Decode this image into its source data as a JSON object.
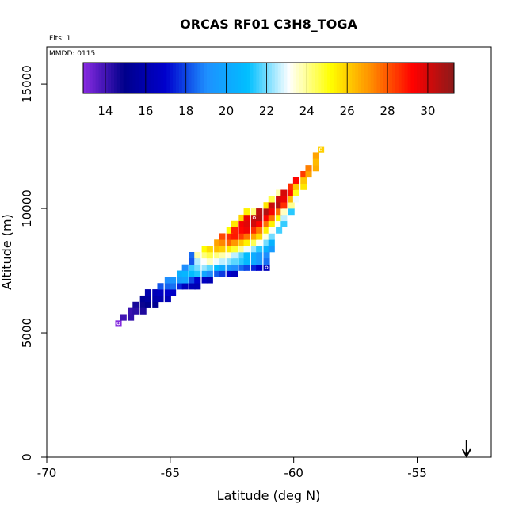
{
  "chart_data": {
    "type": "heatmap",
    "title": "ORCAS RF01 C3H8_TOGA",
    "flights_label": "Flts: 1",
    "date_label": "MMDD: 0115",
    "xlabel": "Latitude (deg N)",
    "ylabel": "Altitude (m)",
    "xlim": [
      -70,
      -52
    ],
    "ylim": [
      0,
      16500
    ],
    "xticks": [
      "-70",
      "-65",
      "-60",
      "-55"
    ],
    "xtick_values": [
      -70,
      -65,
      -60,
      -55
    ],
    "yticks": [
      "0",
      "5000",
      "10000",
      "15000"
    ],
    "ytick_values": [
      0,
      5000,
      10000,
      15000
    ],
    "cell_size": {
      "lat": 0.25,
      "alt": 250
    },
    "colorbar": {
      "range": [
        12.9,
        31.3
      ],
      "ticks": [
        "14",
        "16",
        "18",
        "20",
        "22",
        "24",
        "26",
        "28",
        "30"
      ],
      "tick_values": [
        14,
        16,
        18,
        20,
        22,
        24,
        26,
        28,
        30
      ],
      "colors": [
        "#8a2be2",
        "#00008b",
        "#0000cd",
        "#1e90ff",
        "#00bfff",
        "#ffffff",
        "#ffff00",
        "#ff8c00",
        "#ff0000",
        "#8b1a1a"
      ]
    },
    "arrow_marker": {
      "lat": -53,
      "label": ""
    },
    "cells": [
      [
        -67.1,
        5375,
        13.0
      ],
      [
        -66.9,
        5625,
        14.0
      ],
      [
        -66.6,
        5625,
        14.2
      ],
      [
        -66.6,
        5875,
        14.1
      ],
      [
        -66.4,
        5875,
        14.3
      ],
      [
        -66.1,
        5875,
        14.5
      ],
      [
        -66.4,
        6125,
        14.6
      ],
      [
        -66.1,
        6125,
        14.8
      ],
      [
        -65.9,
        6125,
        15.0
      ],
      [
        -65.6,
        6125,
        15.2
      ],
      [
        -66.1,
        6375,
        15.3
      ],
      [
        -65.9,
        6375,
        15.6
      ],
      [
        -65.6,
        6375,
        15.9
      ],
      [
        -65.4,
        6375,
        16.1
      ],
      [
        -65.1,
        6375,
        16.2
      ],
      [
        -65.9,
        6625,
        16.0
      ],
      [
        -65.6,
        6625,
        16.3
      ],
      [
        -65.4,
        6625,
        16.6
      ],
      [
        -65.1,
        6625,
        16.9
      ],
      [
        -64.9,
        6625,
        16.8
      ],
      [
        -65.4,
        6875,
        18.2
      ],
      [
        -65.1,
        6875,
        18.4
      ],
      [
        -64.9,
        6875,
        18.6
      ],
      [
        -64.6,
        6875,
        17.5
      ],
      [
        -64.4,
        6875,
        16.5
      ],
      [
        -64.1,
        6875,
        16.3
      ],
      [
        -63.9,
        6875,
        16.2
      ],
      [
        -65.1,
        7125,
        19.0
      ],
      [
        -64.9,
        7125,
        19.3
      ],
      [
        -64.6,
        7125,
        19.6
      ],
      [
        -64.4,
        7125,
        19.8
      ],
      [
        -64.1,
        7125,
        18.0
      ],
      [
        -63.9,
        7125,
        17.0
      ],
      [
        -63.6,
        7125,
        16.6
      ],
      [
        -63.4,
        7125,
        16.2
      ],
      [
        -64.6,
        7375,
        20.4
      ],
      [
        -64.4,
        7375,
        20.7
      ],
      [
        -64.1,
        7375,
        21.0
      ],
      [
        -63.9,
        7375,
        21.3
      ],
      [
        -63.6,
        7375,
        20.0
      ],
      [
        -63.4,
        7375,
        19.0
      ],
      [
        -63.1,
        7375,
        18.3
      ],
      [
        -62.9,
        7375,
        17.8
      ],
      [
        -62.6,
        7375,
        17.0
      ],
      [
        -62.4,
        7375,
        16.5
      ],
      [
        -64.4,
        7625,
        19.0
      ],
      [
        -64.1,
        7625,
        21.5
      ],
      [
        -63.9,
        7625,
        22.0
      ],
      [
        -63.6,
        7625,
        22.3
      ],
      [
        -63.4,
        7625,
        21.8
      ],
      [
        -63.1,
        7625,
        21.0
      ],
      [
        -62.9,
        7625,
        20.2
      ],
      [
        -62.6,
        7625,
        19.5
      ],
      [
        -62.4,
        7625,
        19.0
      ],
      [
        -62.1,
        7625,
        18.5
      ],
      [
        -61.9,
        7625,
        18.0
      ],
      [
        -61.6,
        7625,
        17.5
      ],
      [
        -61.4,
        7625,
        16.8
      ],
      [
        -61.1,
        7625,
        16.3
      ],
      [
        -64.1,
        7875,
        18.2
      ],
      [
        -63.9,
        7875,
        22.5
      ],
      [
        -63.6,
        7875,
        23.1
      ],
      [
        -63.4,
        7875,
        23.6
      ],
      [
        -63.1,
        7875,
        23.0
      ],
      [
        -62.9,
        7875,
        22.6
      ],
      [
        -62.6,
        7875,
        22.2
      ],
      [
        -62.4,
        7875,
        21.8
      ],
      [
        -62.1,
        7875,
        21.4
      ],
      [
        -61.9,
        7875,
        20.8
      ],
      [
        -61.6,
        7875,
        20.2
      ],
      [
        -61.4,
        7875,
        19.5
      ],
      [
        -61.1,
        7875,
        18.6
      ],
      [
        -64.1,
        8125,
        18.5
      ],
      [
        -63.9,
        8125,
        23.8
      ],
      [
        -63.6,
        8125,
        24.2
      ],
      [
        -63.4,
        8125,
        24.6
      ],
      [
        -63.1,
        8125,
        24.2
      ],
      [
        -62.9,
        8125,
        23.8
      ],
      [
        -62.6,
        8125,
        23.4
      ],
      [
        -62.4,
        8125,
        22.6
      ],
      [
        -62.1,
        8125,
        21.8
      ],
      [
        -61.9,
        8125,
        21.0
      ],
      [
        -61.6,
        8125,
        20.2
      ],
      [
        -61.4,
        8125,
        19.5
      ],
      [
        -61.1,
        8125,
        19.0
      ],
      [
        -63.6,
        8375,
        25.2
      ],
      [
        -63.4,
        8375,
        25.8
      ],
      [
        -63.1,
        8375,
        26.3
      ],
      [
        -62.9,
        8375,
        26.0
      ],
      [
        -62.6,
        8375,
        25.5
      ],
      [
        -62.4,
        8375,
        24.8
      ],
      [
        -62.1,
        8375,
        24.0
      ],
      [
        -61.9,
        8375,
        23.0
      ],
      [
        -61.6,
        8375,
        22.3
      ],
      [
        -61.4,
        8375,
        21.4
      ],
      [
        -61.1,
        8375,
        20.5
      ],
      [
        -60.9,
        8375,
        19.5
      ],
      [
        -63.1,
        8625,
        26.8
      ],
      [
        -62.9,
        8625,
        27.3
      ],
      [
        -62.6,
        8625,
        27.8
      ],
      [
        -62.4,
        8625,
        27.0
      ],
      [
        -62.1,
        8625,
        26.2
      ],
      [
        -61.9,
        8625,
        25.4
      ],
      [
        -61.6,
        8625,
        24.5
      ],
      [
        -61.4,
        8625,
        23.2
      ],
      [
        -61.1,
        8625,
        22.0
      ],
      [
        -60.9,
        8625,
        20.5
      ],
      [
        -62.9,
        8875,
        28.2
      ],
      [
        -62.6,
        8875,
        28.6
      ],
      [
        -62.4,
        8875,
        28.9
      ],
      [
        -62.1,
        8875,
        28.4
      ],
      [
        -61.9,
        8875,
        27.6
      ],
      [
        -61.6,
        8875,
        26.8
      ],
      [
        -61.4,
        8875,
        25.8
      ],
      [
        -61.1,
        8875,
        23.4
      ],
      [
        -60.9,
        8875,
        22.0
      ],
      [
        -62.6,
        9125,
        25.2
      ],
      [
        -62.4,
        9125,
        28.8
      ],
      [
        -62.1,
        9125,
        29.2
      ],
      [
        -61.9,
        9125,
        29.5
      ],
      [
        -61.6,
        9125,
        28.6
      ],
      [
        -61.4,
        9125,
        27.4
      ],
      [
        -61.1,
        9125,
        25.4
      ],
      [
        -60.9,
        9125,
        23.2
      ],
      [
        -60.6,
        9125,
        21.6
      ],
      [
        -62.4,
        9375,
        25.6
      ],
      [
        -62.1,
        9375,
        29.4
      ],
      [
        -61.9,
        9375,
        29.8
      ],
      [
        -61.6,
        9375,
        30.1
      ],
      [
        -61.4,
        9375,
        29.2
      ],
      [
        -61.1,
        9375,
        27.6
      ],
      [
        -60.9,
        9375,
        25.4
      ],
      [
        -60.6,
        9375,
        23.2
      ],
      [
        -60.4,
        9375,
        21.5
      ],
      [
        -62.1,
        9625,
        25.9
      ],
      [
        -61.9,
        9625,
        29.6
      ],
      [
        -61.6,
        9625,
        30.3
      ],
      [
        -61.4,
        9625,
        30.6
      ],
      [
        -61.1,
        9625,
        29.2
      ],
      [
        -60.9,
        9625,
        27.6
      ],
      [
        -60.6,
        9625,
        25.2
      ],
      [
        -60.4,
        9625,
        22.6
      ],
      [
        -61.9,
        9875,
        25.4
      ],
      [
        -61.6,
        9875,
        24.2
      ],
      [
        -61.4,
        9875,
        30.4
      ],
      [
        -61.1,
        9875,
        30.6
      ],
      [
        -60.9,
        9875,
        29.4
      ],
      [
        -60.6,
        9875,
        27.6
      ],
      [
        -60.4,
        9875,
        23.6
      ],
      [
        -60.1,
        9875,
        21.4
      ],
      [
        -61.1,
        10125,
        25.6
      ],
      [
        -60.9,
        10125,
        30.2
      ],
      [
        -60.6,
        10125,
        30.6
      ],
      [
        -60.4,
        10125,
        28.6
      ],
      [
        -60.1,
        10125,
        24.0
      ],
      [
        -60.9,
        10375,
        24.6
      ],
      [
        -60.6,
        10375,
        30.1
      ],
      [
        -60.4,
        10375,
        29.6
      ],
      [
        -60.1,
        10375,
        26.4
      ],
      [
        -59.9,
        10375,
        23.0
      ],
      [
        -60.6,
        10625,
        23.8
      ],
      [
        -60.4,
        10625,
        30.0
      ],
      [
        -60.1,
        10625,
        29.0
      ],
      [
        -59.9,
        10625,
        25.0
      ],
      [
        -60.1,
        10875,
        28.6
      ],
      [
        -59.9,
        10875,
        26.2
      ],
      [
        -59.6,
        10875,
        25.6
      ],
      [
        -59.9,
        11125,
        29.2
      ],
      [
        -59.6,
        11125,
        26.2
      ],
      [
        -59.6,
        11375,
        28.4
      ],
      [
        -59.4,
        11375,
        26.8
      ],
      [
        -59.4,
        11625,
        27.4
      ],
      [
        -59.1,
        11625,
        26.6
      ],
      [
        -59.1,
        11875,
        26.4
      ],
      [
        -59.1,
        12125,
        26.8
      ],
      [
        -58.9,
        12375,
        26.0
      ]
    ],
    "marked_cells": [
      [
        -67.1,
        5375
      ],
      [
        -61.6,
        9625
      ],
      [
        -61.1,
        7625
      ],
      [
        -58.9,
        12375
      ]
    ]
  }
}
